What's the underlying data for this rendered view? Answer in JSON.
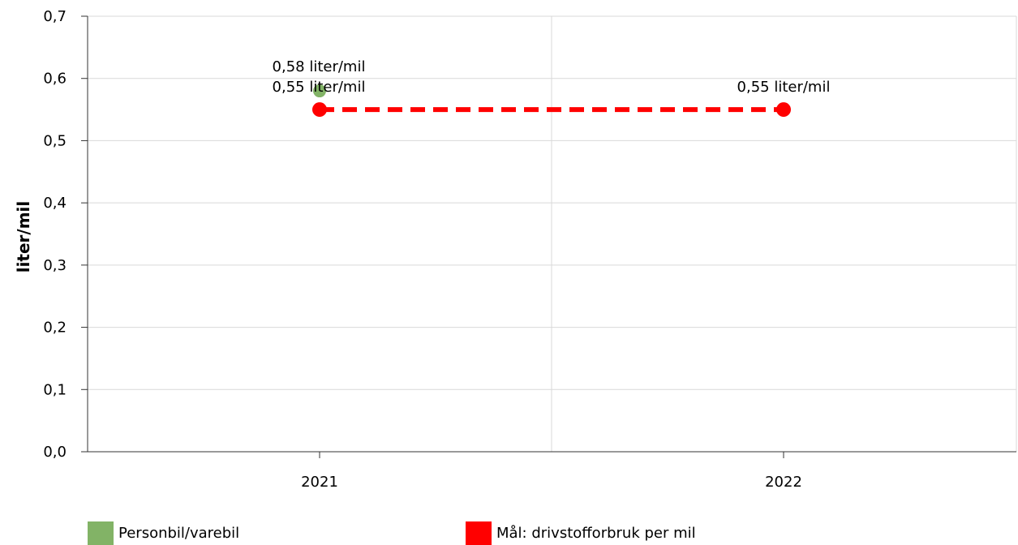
{
  "chart_data": {
    "type": "line",
    "categories": [
      "2021",
      "2022"
    ],
    "ylabel": "liter/mil",
    "ylim": [
      0,
      0.7
    ],
    "yticks": [
      "0,0",
      "0,1",
      "0,2",
      "0,3",
      "0,4",
      "0,5",
      "0,6",
      "0,7"
    ],
    "ytick_values": [
      0,
      0.1,
      0.2,
      0.3,
      0.4,
      0.5,
      0.6,
      0.7
    ],
    "grid": true,
    "legend_position": "bottom",
    "series": [
      {
        "name": "Personbil/varebil",
        "color": "#82b366",
        "style": "point",
        "values": [
          0.58,
          null
        ],
        "labels": [
          "0,58 liter/mil",
          ""
        ]
      },
      {
        "name": "Mål: drivstofforbruk per mil",
        "color": "#ff0000",
        "style": "dashed",
        "values": [
          0.55,
          0.55
        ],
        "labels": [
          "0,55 liter/mil",
          "0,55 liter/mil"
        ]
      }
    ]
  }
}
